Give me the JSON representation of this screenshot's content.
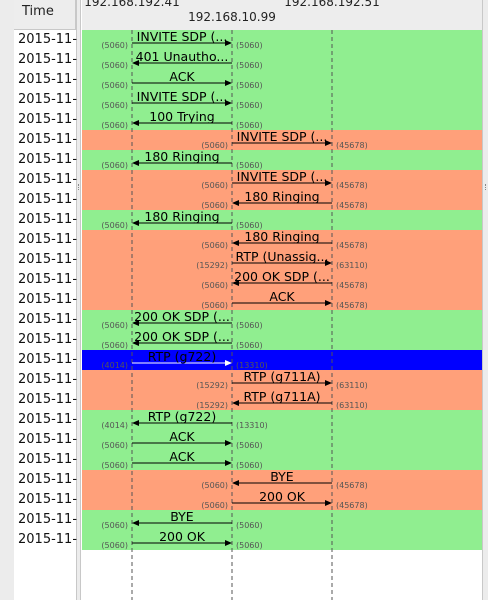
{
  "header": {
    "time_label": "Time",
    "hosts": [
      "192.168.192.41",
      "192.168.10.99",
      "192.168.192.51"
    ]
  },
  "colors": {
    "green": "#90ee90",
    "orange": "#ffa07a",
    "blue": "#0000ff"
  },
  "rows": [
    {
      "time": "2015-11-",
      "label": "INVITE SDP (...",
      "from": 0,
      "to": 1,
      "color": "green",
      "lport": "(5060)",
      "rport": "(5060)"
    },
    {
      "time": "2015-11-",
      "label": "401 Unautho...",
      "from": 1,
      "to": 0,
      "color": "green",
      "lport": "(5060)",
      "rport": "(5060)"
    },
    {
      "time": "2015-11-",
      "label": "ACK",
      "from": 0,
      "to": 1,
      "color": "green",
      "lport": "(5060)",
      "rport": "(5060)"
    },
    {
      "time": "2015-11-",
      "label": "INVITE SDP (...",
      "from": 0,
      "to": 1,
      "color": "green",
      "lport": "(5060)",
      "rport": "(5060)"
    },
    {
      "time": "2015-11-",
      "label": "100 Trying",
      "from": 1,
      "to": 0,
      "color": "green",
      "lport": "(5060)",
      "rport": "(5060)"
    },
    {
      "time": "2015-11-",
      "label": "INVITE SDP (...",
      "from": 1,
      "to": 2,
      "color": "orange",
      "lport": "(5060)",
      "rport": "(45678)"
    },
    {
      "time": "2015-11-",
      "label": "180 Ringing",
      "from": 1,
      "to": 0,
      "color": "green",
      "lport": "(5060)",
      "rport": "(5060)"
    },
    {
      "time": "2015-11-",
      "label": "INVITE SDP (...",
      "from": 1,
      "to": 2,
      "color": "orange",
      "lport": "(5060)",
      "rport": "(45678)"
    },
    {
      "time": "2015-11-",
      "label": "180 Ringing",
      "from": 2,
      "to": 1,
      "color": "orange",
      "lport": "(5060)",
      "rport": "(45678)"
    },
    {
      "time": "2015-11-",
      "label": "180 Ringing",
      "from": 1,
      "to": 0,
      "color": "green",
      "lport": "(5060)",
      "rport": "(5060)"
    },
    {
      "time": "2015-11-",
      "label": "180 Ringing",
      "from": 2,
      "to": 1,
      "color": "orange",
      "lport": "(5060)",
      "rport": "(45678)"
    },
    {
      "time": "2015-11-",
      "label": "RTP (Unassig...",
      "from": 1,
      "to": 2,
      "color": "orange",
      "lport": "(15292)",
      "rport": "(63110)"
    },
    {
      "time": "2015-11-",
      "label": "200 OK SDP (...",
      "from": 2,
      "to": 1,
      "color": "orange",
      "lport": "(5060)",
      "rport": "(45678)"
    },
    {
      "time": "2015-11-",
      "label": "ACK",
      "from": 1,
      "to": 2,
      "color": "orange",
      "lport": "(5060)",
      "rport": "(45678)"
    },
    {
      "time": "2015-11-",
      "label": "200 OK SDP (...",
      "from": 1,
      "to": 0,
      "color": "green",
      "lport": "(5060)",
      "rport": "(5060)"
    },
    {
      "time": "2015-11-",
      "label": "200 OK SDP (...",
      "from": 1,
      "to": 0,
      "color": "green",
      "lport": "(5060)",
      "rport": "(5060)"
    },
    {
      "time": "2015-11-",
      "label": "RTP (g722)",
      "from": 0,
      "to": 1,
      "color": "blue",
      "lport": "(4014)",
      "rport": "(13310)"
    },
    {
      "time": "2015-11-",
      "label": "RTP (g711A)",
      "from": 1,
      "to": 2,
      "color": "orange",
      "lport": "(15292)",
      "rport": "(63110)"
    },
    {
      "time": "2015-11-",
      "label": "RTP (g711A)",
      "from": 2,
      "to": 1,
      "color": "orange",
      "lport": "(15292)",
      "rport": "(63110)"
    },
    {
      "time": "2015-11-",
      "label": "RTP (g722)",
      "from": 1,
      "to": 0,
      "color": "green",
      "lport": "(4014)",
      "rport": "(13310)"
    },
    {
      "time": "2015-11-",
      "label": "ACK",
      "from": 0,
      "to": 1,
      "color": "green",
      "lport": "(5060)",
      "rport": "(5060)"
    },
    {
      "time": "2015-11-",
      "label": "ACK",
      "from": 0,
      "to": 1,
      "color": "green",
      "lport": "(5060)",
      "rport": "(5060)"
    },
    {
      "time": "2015-11-",
      "label": "BYE",
      "from": 2,
      "to": 1,
      "color": "orange",
      "lport": "(5060)",
      "rport": "(45678)"
    },
    {
      "time": "2015-11-",
      "label": "200 OK",
      "from": 1,
      "to": 2,
      "color": "orange",
      "lport": "(5060)",
      "rport": "(45678)"
    },
    {
      "time": "2015-11-",
      "label": "BYE",
      "from": 1,
      "to": 0,
      "color": "green",
      "lport": "(5060)",
      "rport": "(5060)"
    },
    {
      "time": "2015-11-",
      "label": "200 OK",
      "from": 0,
      "to": 1,
      "color": "green",
      "lport": "(5060)",
      "rport": "(5060)"
    }
  ]
}
